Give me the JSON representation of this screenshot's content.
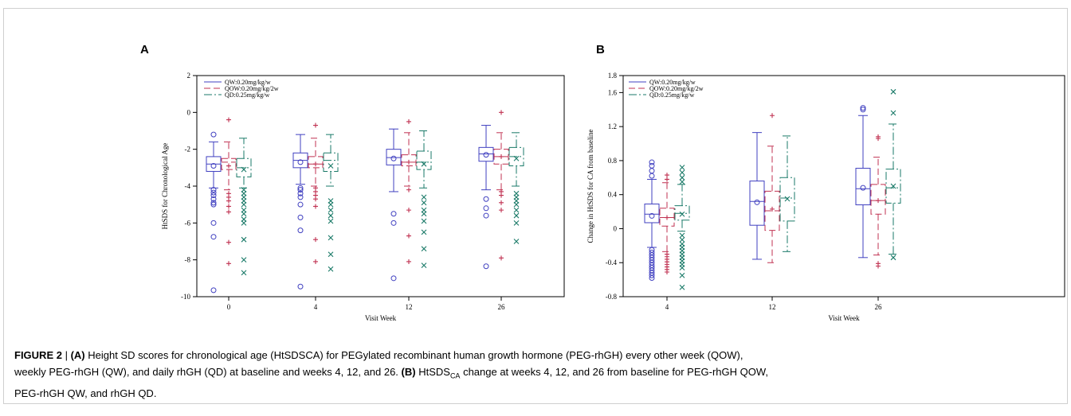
{
  "chart_data": [
    {
      "type": "boxplot",
      "panel": "A",
      "ylabel": "HtSDS for Chronological Age",
      "xlabel": "Visit Week",
      "categories": [
        "0",
        "4",
        "12",
        "26"
      ],
      "ylim": [
        -10,
        2
      ],
      "yticks": [
        2,
        0,
        -2,
        -4,
        -6,
        -8,
        -10
      ],
      "legend": [
        "QW:0.20mg/kg/w",
        "QOW:0.20mg/kg/2w",
        "QD:0.25mg/kg/w"
      ],
      "legend_position": "top-left",
      "series": [
        {
          "name": "QW:0.20mg/kg/w",
          "color": "#4040c0",
          "dash": "",
          "mean_marker": "circle",
          "outlier_marker": "circle",
          "boxes": [
            {
              "whisker_low": -4.1,
              "q1": -3.2,
              "median": -2.8,
              "q3": -2.4,
              "whisker_high": -1.6,
              "mean": -2.9,
              "outliers": [
                -4.2,
                -4.35,
                -4.5,
                -4.7,
                -4.9,
                -5.0,
                -6.0,
                -6.75,
                -9.65,
                -1.2
              ]
            },
            {
              "whisker_low": -3.9,
              "q1": -3.0,
              "median": -2.6,
              "q3": -2.2,
              "whisker_high": -1.2,
              "mean": -2.7,
              "outliers": [
                -4.1,
                -4.2,
                -4.4,
                -4.6,
                -5.0,
                -5.7,
                -6.4,
                -9.45
              ]
            },
            {
              "whisker_low": -4.3,
              "q1": -2.85,
              "median": -2.45,
              "q3": -2.0,
              "whisker_high": -0.9,
              "mean": -2.5,
              "outliers": [
                -5.5,
                -6.0,
                -9.0
              ]
            },
            {
              "whisker_low": -4.2,
              "q1": -2.65,
              "median": -2.25,
              "q3": -1.9,
              "whisker_high": -0.7,
              "mean": -2.3,
              "outliers": [
                -4.7,
                -5.2,
                -5.6,
                -8.35
              ]
            }
          ]
        },
        {
          "name": "QOW:0.20mg/kg/2w",
          "color": "#c03050",
          "dash": "8,4",
          "mean_marker": "plus",
          "outlier_marker": "plus",
          "boxes": [
            {
              "whisker_low": -4.2,
              "q1": -3.1,
              "median": -2.7,
              "q3": -2.5,
              "whisker_high": -1.6,
              "mean": -2.9,
              "outliers": [
                -0.4,
                -4.4,
                -4.6,
                -4.8,
                -5.1,
                -5.4,
                -7.05,
                -8.2
              ]
            },
            {
              "whisker_low": -4.0,
              "q1": -3.0,
              "median": -2.8,
              "q3": -2.4,
              "whisker_high": -1.4,
              "mean": -2.8,
              "outliers": [
                -0.7,
                -4.1,
                -4.3,
                -4.5,
                -4.7,
                -5.1,
                -6.9,
                -8.1
              ]
            },
            {
              "whisker_low": -4.0,
              "q1": -2.9,
              "median": -2.7,
              "q3": -2.3,
              "whisker_high": -1.1,
              "mean": -2.7,
              "outliers": [
                -0.5,
                -4.2,
                -5.3,
                -6.7,
                -8.1
              ]
            },
            {
              "whisker_low": -4.2,
              "q1": -2.8,
              "median": -2.4,
              "q3": -2.0,
              "whisker_high": -1.1,
              "mean": -2.4,
              "outliers": [
                0.0,
                -4.3,
                -4.5,
                -4.9,
                -5.3,
                -7.9
              ]
            }
          ]
        },
        {
          "name": "QD:0.25mg/kg/w",
          "color": "#1a7a68",
          "dash": "10,3,2,3",
          "mean_marker": "x",
          "outlier_marker": "x",
          "boxes": [
            {
              "whisker_low": -4.1,
              "q1": -3.5,
              "median": -3.0,
              "q3": -2.5,
              "whisker_high": -1.4,
              "mean": -3.1,
              "outliers": [
                -4.2,
                -4.4,
                -4.6,
                -4.8,
                -5.0,
                -5.3,
                -5.5,
                -5.8,
                -6.0,
                -6.9,
                -8.0,
                -8.7
              ]
            },
            {
              "whisker_low": -4.0,
              "q1": -3.2,
              "median": -2.6,
              "q3": -2.2,
              "whisker_high": -1.2,
              "mean": -2.9,
              "outliers": [
                -4.8,
                -5.0,
                -5.3,
                -5.6,
                -5.9,
                -6.8,
                -7.7,
                -8.5
              ]
            },
            {
              "whisker_low": -4.1,
              "q1": -3.1,
              "median": -2.7,
              "q3": -2.1,
              "whisker_high": -1.0,
              "mean": -2.8,
              "outliers": [
                -4.6,
                -4.9,
                -5.3,
                -5.5,
                -5.9,
                -6.5,
                -7.4,
                -8.3
              ]
            },
            {
              "whisker_low": -4.0,
              "q1": -2.9,
              "median": -2.4,
              "q3": -1.9,
              "whisker_high": -1.1,
              "mean": -2.5,
              "outliers": [
                -4.4,
                -4.6,
                -4.8,
                -5.0,
                -5.3,
                -5.6,
                -6.0,
                -7.0
              ]
            }
          ]
        }
      ]
    },
    {
      "type": "boxplot",
      "panel": "B",
      "ylabel": "Change in HtSDS for CA from baseline",
      "xlabel": "Visit Week",
      "categories": [
        "4",
        "12",
        "26"
      ],
      "ylim": [
        -0.8,
        1.8
      ],
      "yticks": [
        1.8,
        1.6,
        1.2,
        0.8,
        0.4,
        0,
        -0.4,
        -0.8
      ],
      "legend": [
        "QW:0.20mg/kg/w",
        "QOW:0.20mg/kg/2w",
        "QD:0.25mg/kg/w"
      ],
      "legend_position": "top-left",
      "series": [
        {
          "name": "QW:0.20mg/kg/w",
          "color": "#4040c0",
          "dash": "",
          "mean_marker": "circle",
          "outlier_marker": "circle",
          "boxes": [
            {
              "whisker_low": -0.22,
              "q1": 0.07,
              "median": 0.17,
              "q3": 0.29,
              "whisker_high": 0.58,
              "mean": 0.15,
              "outliers": [
                0.62,
                0.68,
                0.74,
                0.78,
                -0.25,
                -0.28,
                -0.31,
                -0.34,
                -0.37,
                -0.4,
                -0.43,
                -0.46,
                -0.49,
                -0.52,
                -0.55,
                -0.58
              ]
            },
            {
              "whisker_low": -0.36,
              "q1": 0.04,
              "median": 0.32,
              "q3": 0.56,
              "whisker_high": 1.13,
              "mean": 0.31,
              "outliers": []
            },
            {
              "whisker_low": -0.34,
              "q1": 0.28,
              "median": 0.47,
              "q3": 0.71,
              "whisker_high": 1.33,
              "mean": 0.48,
              "outliers": [
                1.4,
                1.42
              ]
            }
          ]
        },
        {
          "name": "QOW:0.20mg/kg/2w",
          "color": "#c03050",
          "dash": "8,4",
          "mean_marker": "plus",
          "outlier_marker": "plus",
          "boxes": [
            {
              "whisker_low": -0.27,
              "q1": 0.03,
              "median": 0.13,
              "q3": 0.24,
              "whisker_high": 0.54,
              "mean": 0.13,
              "outliers": [
                0.58,
                0.63,
                -0.3,
                -0.33,
                -0.36,
                -0.39,
                -0.42,
                -0.45,
                -0.48,
                -0.51
              ]
            },
            {
              "whisker_low": -0.4,
              "q1": -0.02,
              "median": 0.21,
              "q3": 0.44,
              "whisker_high": 0.97,
              "mean": 0.23,
              "outliers": [
                1.33
              ]
            },
            {
              "whisker_low": -0.31,
              "q1": 0.17,
              "median": 0.33,
              "q3": 0.52,
              "whisker_high": 0.84,
              "mean": 0.33,
              "outliers": [
                1.06,
                1.08,
                -0.41,
                -0.44
              ]
            }
          ]
        },
        {
          "name": "QD:0.25mg/kg/w",
          "color": "#1a7a68",
          "dash": "10,3,2,3",
          "mean_marker": "x",
          "outlier_marker": "x",
          "boxes": [
            {
              "whisker_low": -0.03,
              "q1": 0.1,
              "median": 0.18,
              "q3": 0.27,
              "whisker_high": 0.52,
              "mean": 0.17,
              "outliers": [
                0.55,
                0.6,
                0.66,
                0.72,
                -0.08,
                -0.13,
                -0.18,
                -0.22,
                -0.26,
                -0.3,
                -0.34,
                -0.38,
                -0.42,
                -0.46,
                -0.55,
                -0.69
              ]
            },
            {
              "whisker_low": -0.27,
              "q1": 0.09,
              "median": 0.36,
              "q3": 0.6,
              "whisker_high": 1.09,
              "mean": 0.35,
              "outliers": []
            },
            {
              "whisker_low": -0.3,
              "q1": 0.3,
              "median": 0.48,
              "q3": 0.7,
              "whisker_high": 1.23,
              "mean": 0.5,
              "outliers": [
                1.36,
                1.61,
                -0.34
              ]
            }
          ]
        }
      ]
    }
  ],
  "panels": {
    "a_letter": "A",
    "b_letter": "B"
  },
  "caption": {
    "label": "FIGURE 2",
    "separator": " | ",
    "line1_a_tag": "(A)",
    "line1_text": " Height SD scores for chronological age (HtSDSCA) for PEGylated recombinant human growth hormone (PEG-rhGH) every other week (QOW),",
    "line2_text": "weekly PEG-rhGH (QW), and daily rhGH (QD) at baseline and weeks 4, 12, and 26. ",
    "line2_b_tag": "(B)",
    "line2_text_b_pre": " HtSDS",
    "line2_sub": "CA",
    "line2_text_b_post": " change at weeks 4, 12, and 26 from baseline for PEG-rhGH QOW,",
    "line3_text": "PEG-rhGH QW, and rhGH QD."
  }
}
